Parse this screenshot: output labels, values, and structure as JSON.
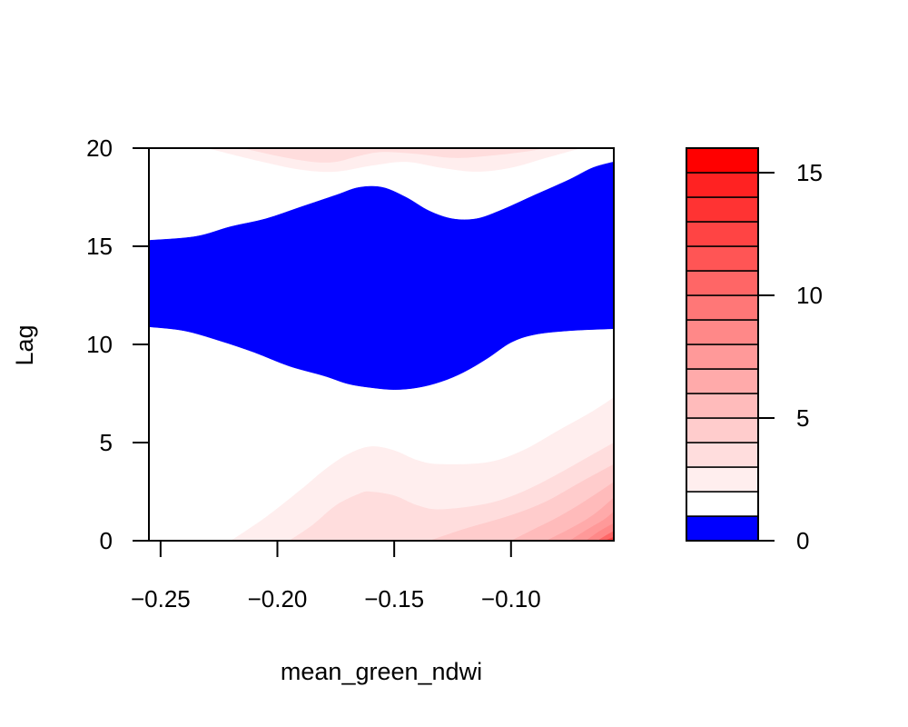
{
  "chart_data": {
    "type": "heatmap",
    "title": "",
    "xlabel": "mean_green_ndwi",
    "ylabel": "Lag",
    "xlim": [
      -0.255,
      -0.056
    ],
    "ylim": [
      0,
      20
    ],
    "x_ticks": [
      {
        "value": -0.25,
        "label": "−0.25"
      },
      {
        "value": -0.2,
        "label": "−0.20"
      },
      {
        "value": -0.15,
        "label": "−0.15"
      },
      {
        "value": -0.1,
        "label": "−0.10"
      }
    ],
    "y_ticks": [
      {
        "value": 0,
        "label": "0"
      },
      {
        "value": 5,
        "label": "5"
      },
      {
        "value": 10,
        "label": "10"
      },
      {
        "value": 15,
        "label": "15"
      },
      {
        "value": 20,
        "label": "20"
      }
    ],
    "legend": {
      "placement": "right",
      "range": [
        0,
        16
      ],
      "ticks": [
        {
          "value": 0,
          "label": "0"
        },
        {
          "value": 5,
          "label": "5"
        },
        {
          "value": 10,
          "label": "10"
        },
        {
          "value": 15,
          "label": "15"
        }
      ],
      "levels": [
        {
          "from": 0,
          "to": 1,
          "color": "#0000ff"
        },
        {
          "from": 1,
          "to": 2,
          "color": "#ffffff"
        },
        {
          "from": 2,
          "to": 3,
          "color": "#ffeeee"
        },
        {
          "from": 3,
          "to": 4,
          "color": "#ffdddd"
        },
        {
          "from": 4,
          "to": 5,
          "color": "#ffcccc"
        },
        {
          "from": 5,
          "to": 6,
          "color": "#ffbbbb"
        },
        {
          "from": 6,
          "to": 7,
          "color": "#ffaaaa"
        },
        {
          "from": 7,
          "to": 8,
          "color": "#ff9999"
        },
        {
          "from": 8,
          "to": 9,
          "color": "#ff8888"
        },
        {
          "from": 9,
          "to": 10,
          "color": "#ff7777"
        },
        {
          "from": 10,
          "to": 11,
          "color": "#ff6666"
        },
        {
          "from": 11,
          "to": 12,
          "color": "#ff5555"
        },
        {
          "from": 12,
          "to": 13,
          "color": "#ff4444"
        },
        {
          "from": 13,
          "to": 14,
          "color": "#ff3333"
        },
        {
          "from": 14,
          "to": 15,
          "color": "#ff2222"
        },
        {
          "from": 15,
          "to": 16,
          "color": "#ff0000"
        }
      ]
    },
    "regions": [
      {
        "name": "blue-band",
        "level": 0,
        "color": "#0000ff",
        "upper_boundary": [
          [
            -0.255,
            15.3
          ],
          [
            -0.235,
            15.5
          ],
          [
            -0.22,
            16.0
          ],
          [
            -0.205,
            16.4
          ],
          [
            -0.19,
            17.0
          ],
          [
            -0.175,
            17.6
          ],
          [
            -0.165,
            18.0
          ],
          [
            -0.155,
            18.0
          ],
          [
            -0.145,
            17.5
          ],
          [
            -0.135,
            16.8
          ],
          [
            -0.125,
            16.4
          ],
          [
            -0.115,
            16.4
          ],
          [
            -0.105,
            16.8
          ],
          [
            -0.09,
            17.6
          ],
          [
            -0.075,
            18.4
          ],
          [
            -0.065,
            19.0
          ],
          [
            -0.056,
            19.3
          ]
        ],
        "lower_boundary": [
          [
            -0.255,
            10.9
          ],
          [
            -0.24,
            10.7
          ],
          [
            -0.225,
            10.2
          ],
          [
            -0.21,
            9.6
          ],
          [
            -0.195,
            8.9
          ],
          [
            -0.18,
            8.4
          ],
          [
            -0.17,
            8.0
          ],
          [
            -0.16,
            7.8
          ],
          [
            -0.15,
            7.7
          ],
          [
            -0.14,
            7.8
          ],
          [
            -0.13,
            8.1
          ],
          [
            -0.12,
            8.6
          ],
          [
            -0.11,
            9.3
          ],
          [
            -0.1,
            10.1
          ],
          [
            -0.09,
            10.5
          ],
          [
            -0.075,
            10.7
          ],
          [
            -0.056,
            10.8
          ]
        ]
      },
      {
        "name": "top-red-band",
        "level": 3,
        "color": "#ffeeee",
        "lower_boundary": [
          [
            -0.23,
            20.0
          ],
          [
            -0.21,
            19.4
          ],
          [
            -0.19,
            18.9
          ],
          [
            -0.175,
            18.8
          ],
          [
            -0.16,
            19.1
          ],
          [
            -0.145,
            19.3
          ],
          [
            -0.13,
            19.0
          ],
          [
            -0.115,
            18.8
          ],
          [
            -0.1,
            19.0
          ],
          [
            -0.085,
            19.5
          ],
          [
            -0.07,
            20.0
          ]
        ]
      },
      {
        "name": "top-red-core",
        "level": 4,
        "color": "#ffdddd",
        "lower_boundary": [
          [
            -0.215,
            20.0
          ],
          [
            -0.2,
            19.6
          ],
          [
            -0.185,
            19.3
          ],
          [
            -0.175,
            19.3
          ],
          [
            -0.165,
            19.6
          ],
          [
            -0.155,
            19.8
          ],
          [
            -0.14,
            19.7
          ],
          [
            -0.125,
            19.5
          ],
          [
            -0.11,
            19.6
          ],
          [
            -0.095,
            19.8
          ],
          [
            -0.085,
            20.0
          ]
        ]
      },
      {
        "name": "bottom-red-gradient",
        "levels": [
          {
            "level": 3,
            "color": "#ffeeee",
            "upper_boundary": [
              [
                -0.22,
                0.0
              ],
              [
                -0.205,
                1.2
              ],
              [
                -0.19,
                2.6
              ],
              [
                -0.18,
                3.6
              ],
              [
                -0.17,
                4.4
              ],
              [
                -0.16,
                4.8
              ],
              [
                -0.15,
                4.6
              ],
              [
                -0.14,
                4.1
              ],
              [
                -0.13,
                3.9
              ],
              [
                -0.11,
                4.0
              ],
              [
                -0.095,
                4.6
              ],
              [
                -0.08,
                5.6
              ],
              [
                -0.065,
                6.6
              ],
              [
                -0.056,
                7.3
              ]
            ]
          },
          {
            "level": 4,
            "color": "#ffdddd",
            "upper_boundary": [
              [
                -0.195,
                0.0
              ],
              [
                -0.185,
                0.8
              ],
              [
                -0.175,
                1.8
              ],
              [
                -0.165,
                2.4
              ],
              [
                -0.16,
                2.5
              ],
              [
                -0.15,
                2.3
              ],
              [
                -0.14,
                1.8
              ],
              [
                -0.13,
                1.6
              ],
              [
                -0.11,
                1.9
              ],
              [
                -0.095,
                2.5
              ],
              [
                -0.08,
                3.4
              ],
              [
                -0.065,
                4.4
              ],
              [
                -0.056,
                5.0
              ]
            ]
          },
          {
            "level": 5,
            "color": "#ffcccc",
            "upper_boundary": [
              [
                -0.135,
                0.0
              ],
              [
                -0.12,
                0.6
              ],
              [
                -0.1,
                1.3
              ],
              [
                -0.085,
                2.0
              ],
              [
                -0.07,
                3.0
              ],
              [
                -0.056,
                3.9
              ]
            ]
          },
          {
            "level": 6,
            "color": "#ffbbbb",
            "upper_boundary": [
              [
                -0.1,
                0.0
              ],
              [
                -0.09,
                0.6
              ],
              [
                -0.08,
                1.2
              ],
              [
                -0.07,
                1.9
              ],
              [
                -0.056,
                3.0
              ]
            ]
          },
          {
            "level": 7,
            "color": "#ffaaaa",
            "upper_boundary": [
              [
                -0.085,
                0.0
              ],
              [
                -0.075,
                0.6
              ],
              [
                -0.065,
                1.3
              ],
              [
                -0.056,
                2.2
              ]
            ]
          },
          {
            "level": 8,
            "color": "#ff9999",
            "upper_boundary": [
              [
                -0.075,
                0.0
              ],
              [
                -0.067,
                0.6
              ],
              [
                -0.06,
                1.1
              ],
              [
                -0.056,
                1.5
              ]
            ]
          },
          {
            "level": 9,
            "color": "#ff8888",
            "upper_boundary": [
              [
                -0.068,
                0.0
              ],
              [
                -0.062,
                0.5
              ],
              [
                -0.056,
                0.9
              ]
            ]
          },
          {
            "level": 10,
            "color": "#ff6666",
            "upper_boundary": [
              [
                -0.063,
                0.0
              ],
              [
                -0.059,
                0.3
              ],
              [
                -0.056,
                0.5
              ]
            ]
          },
          {
            "level": 11,
            "color": "#ff4444",
            "upper_boundary": [
              [
                -0.06,
                0.0
              ],
              [
                -0.056,
                0.2
              ]
            ]
          }
        ]
      }
    ]
  }
}
